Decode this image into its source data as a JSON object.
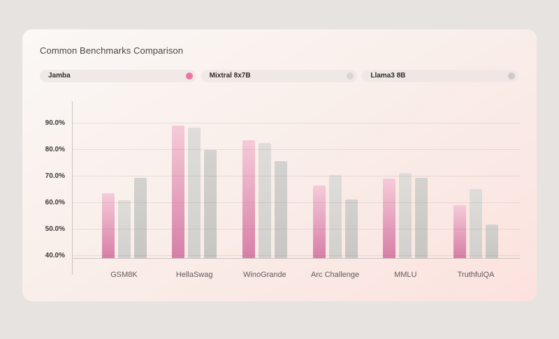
{
  "card": {
    "title": "Common Benchmarks Comparison"
  },
  "legend": {
    "items": [
      {
        "label": "Jamba",
        "dot_color": "#ee74a4"
      },
      {
        "label": "Mixtral 8x7B",
        "dot_color": "#d8d4d1"
      },
      {
        "label": "Llama3 8B",
        "dot_color": "#cecac7"
      }
    ]
  },
  "chart_data": {
    "type": "bar",
    "title": "Common Benchmarks Comparison",
    "categories": [
      "GSM8K",
      "HellaSwag",
      "WinoGrande",
      "Arc Challenge",
      "MMLU",
      "TruthfulQA"
    ],
    "series": [
      {
        "name": "Jamba",
        "values": [
          63.3,
          88.8,
          83.3,
          66.3,
          68.9,
          59.0
        ],
        "color_top": "#f5cbd8",
        "color_bottom": "#d77fa7"
      },
      {
        "name": "Mixtral 8x7B",
        "values": [
          60.8,
          88.0,
          82.4,
          70.3,
          71.0,
          64.9
        ],
        "color_top": "#dfddda",
        "color_bottom": "#d2d0cd"
      },
      {
        "name": "Llama3 8B",
        "values": [
          69.2,
          79.6,
          75.4,
          61.1,
          69.1,
          51.6
        ],
        "color_top": "#d3d2cf",
        "color_bottom": "#c7c6c3"
      }
    ],
    "xlabel": "",
    "ylabel": "",
    "y_tick_labels": [
      "40.0%",
      "50.0%",
      "60.0%",
      "70.0%",
      "80.0%",
      "90.0%"
    ],
    "y_tick_values": [
      40,
      50,
      60,
      70,
      80,
      90
    ],
    "ylim": [
      39,
      98
    ],
    "grid": true,
    "legend_position": "top",
    "colors": {
      "accent_pink": "#ee74a4",
      "neutral_gray_1": "#d8d4d1",
      "neutral_gray_2": "#cecac7"
    }
  }
}
